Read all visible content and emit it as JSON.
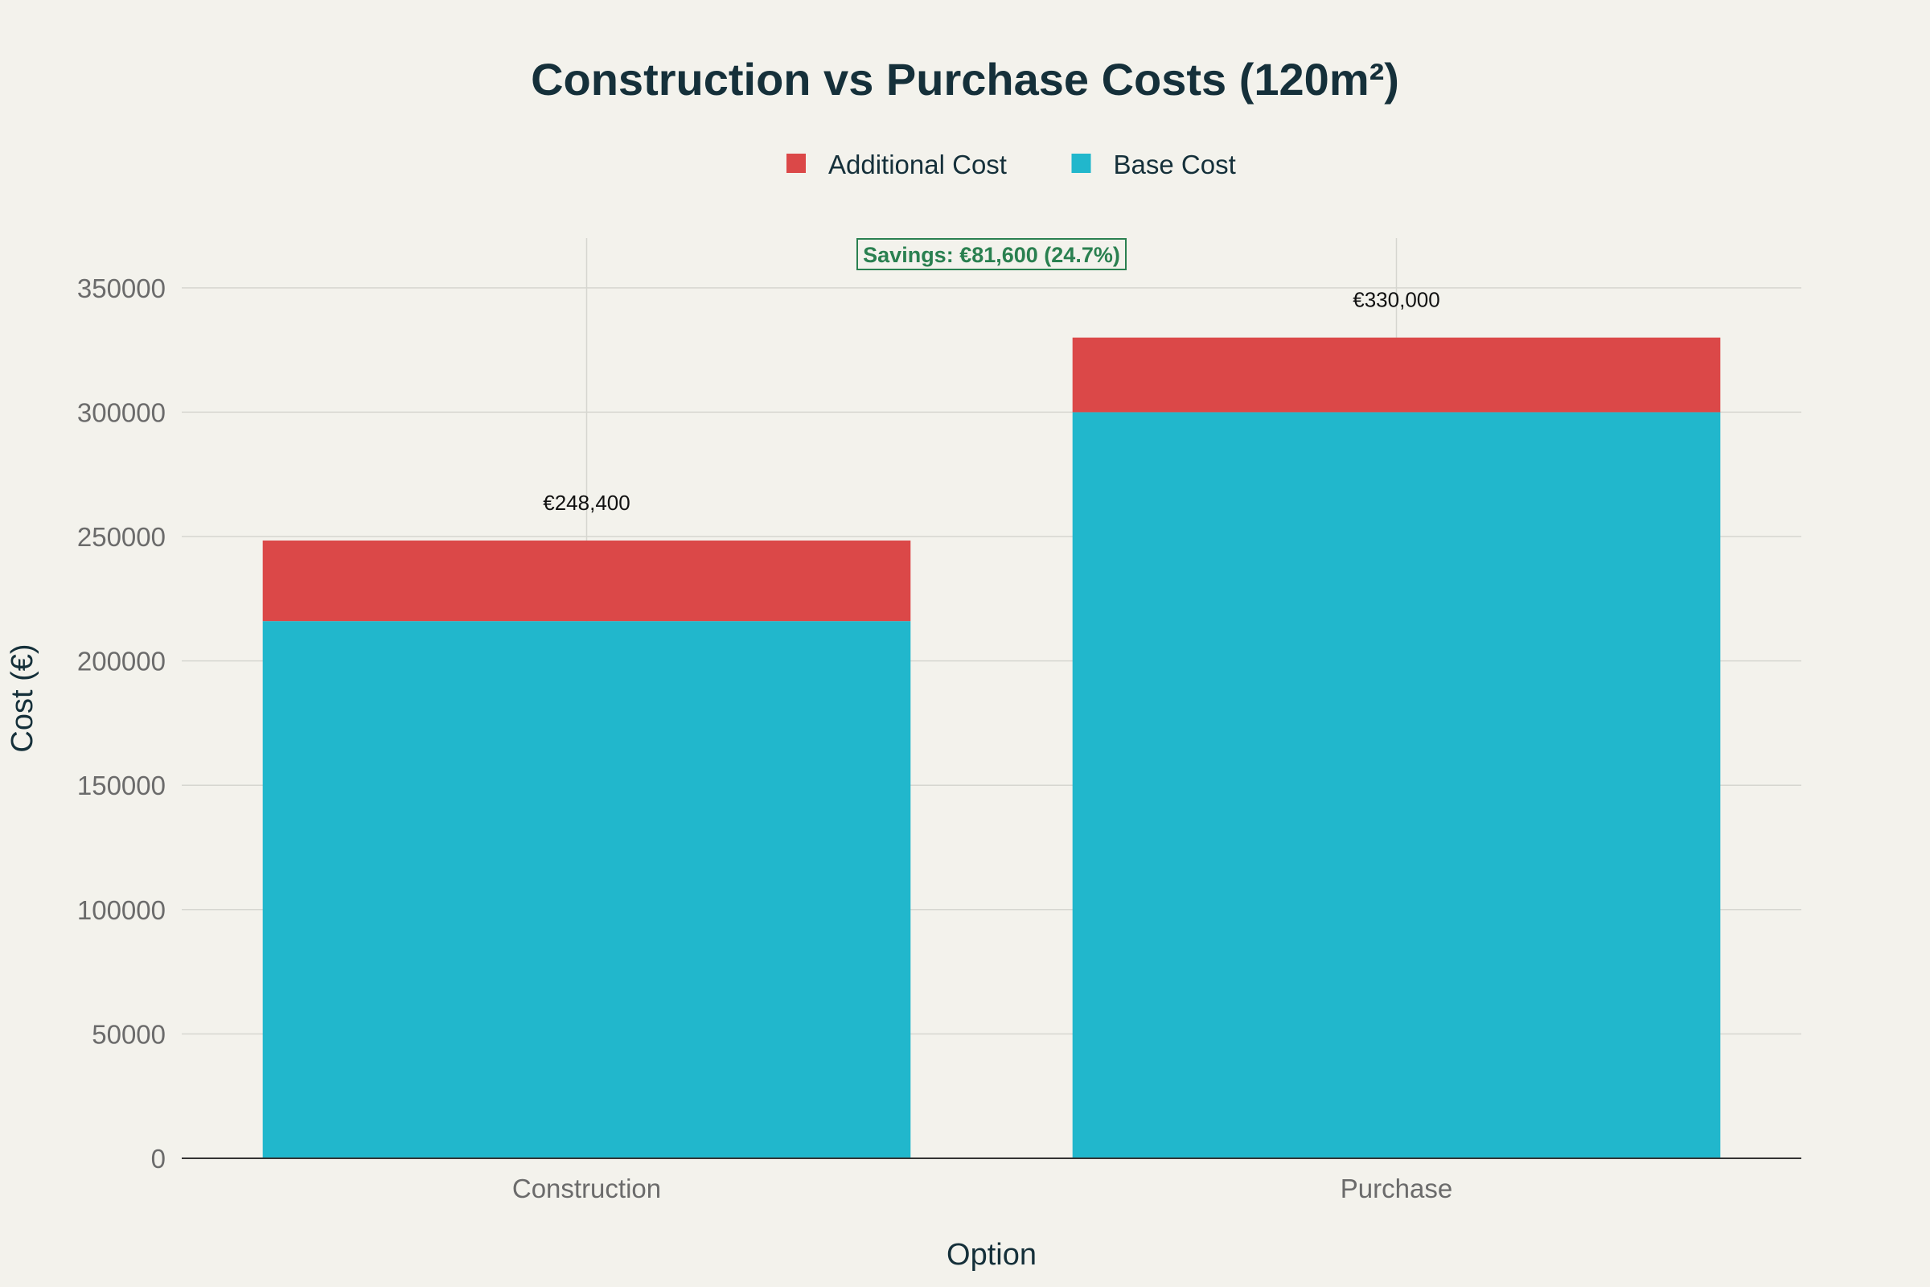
{
  "chart_data": {
    "type": "bar",
    "stacked": true,
    "title": "Construction vs Purchase Costs (120m²)",
    "xlabel": "Option",
    "ylabel": "Cost (€)",
    "categories": [
      "Construction",
      "Purchase"
    ],
    "series": [
      {
        "name": "Base Cost",
        "color": "#21b7cc",
        "values": [
          216000,
          300000
        ]
      },
      {
        "name": "Additional Cost",
        "color": "#db4848",
        "values": [
          32400,
          30000
        ]
      }
    ],
    "legend_order": [
      "Additional Cost",
      "Base Cost"
    ],
    "total_labels": [
      "€248,400",
      "€330,000"
    ],
    "ylim": [
      0,
      370000
    ],
    "yticks": [
      0,
      50000,
      100000,
      150000,
      200000,
      250000,
      300000,
      350000
    ],
    "ytick_labels": [
      "0",
      "50000",
      "100000",
      "150000",
      "200000",
      "250000",
      "300000",
      "350000"
    ],
    "grid": true,
    "legend_position": "top-center",
    "annotation": {
      "text": "Savings: €81,600 (24.7%)",
      "color": "#2a8050"
    }
  }
}
